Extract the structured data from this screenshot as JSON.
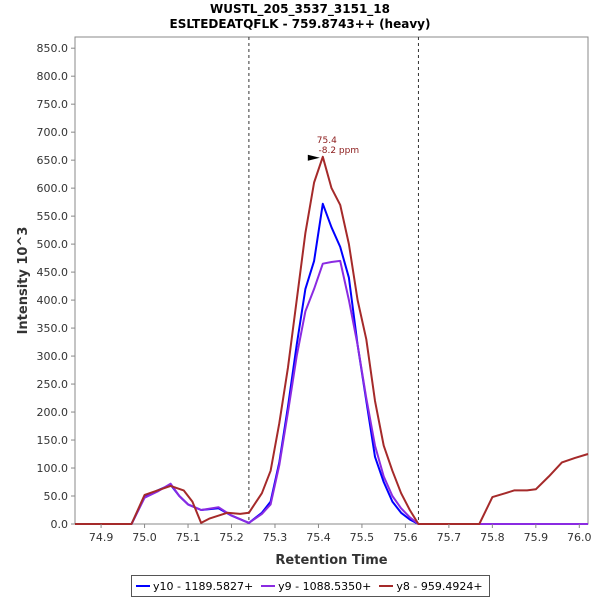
{
  "chart_data": {
    "type": "line",
    "title": "WUSTL_205_3537_3151_18",
    "subtitle": "ESLTEDEATQFLK - 759.8743++ (heavy)",
    "xlabel": "Retention Time",
    "ylabel": "Intensity 10^3",
    "xlim": [
      74.84,
      76.02
    ],
    "ylim": [
      0,
      870
    ],
    "x_ticks": [
      74.9,
      75.0,
      75.1,
      75.2,
      75.3,
      75.4,
      75.5,
      75.6,
      75.7,
      75.8,
      75.9,
      76.0
    ],
    "x_tick_labels": [
      "74.9",
      "75.0",
      "75.1",
      "75.2",
      "75.3",
      "75.4",
      "75.5",
      "75.6",
      "75.7",
      "75.8",
      "75.9",
      "76.0"
    ],
    "y_ticks": [
      0,
      50,
      100,
      150,
      200,
      250,
      300,
      350,
      400,
      450,
      500,
      550,
      600,
      650,
      700,
      750,
      800,
      850
    ],
    "y_tick_labels": [
      "0.0",
      "50.0",
      "100.0",
      "150.0",
      "200.0",
      "250.0",
      "300.0",
      "350.0",
      "400.0",
      "450.0",
      "500.0",
      "550.0",
      "600.0",
      "650.0",
      "700.0",
      "750.0",
      "800.0",
      "850.0"
    ],
    "integration_bounds": [
      75.24,
      75.63
    ],
    "annotation": {
      "x": 75.41,
      "y": 656,
      "line1": "75.4",
      "line2": "-8.2 ppm"
    },
    "series": [
      {
        "name": "y10 - 1189.5827+",
        "color": "#0000ff",
        "x": [
          74.84,
          74.97,
          75.0,
          75.03,
          75.06,
          75.08,
          75.1,
          75.13,
          75.17,
          75.2,
          75.24,
          75.27,
          75.29,
          75.31,
          75.33,
          75.35,
          75.37,
          75.39,
          75.41,
          75.43,
          75.45,
          75.47,
          75.49,
          75.51,
          75.53,
          75.55,
          75.57,
          75.59,
          75.61,
          75.63,
          76.02
        ],
        "y": [
          0,
          0,
          48,
          60,
          70,
          50,
          35,
          25,
          28,
          15,
          2,
          20,
          40,
          110,
          210,
          320,
          420,
          470,
          572,
          530,
          495,
          440,
          320,
          220,
          120,
          75,
          40,
          20,
          8,
          0,
          0
        ]
      },
      {
        "name": "y9 - 1088.5350+",
        "color": "#8a2be2",
        "x": [
          74.84,
          74.97,
          75.0,
          75.03,
          75.06,
          75.08,
          75.1,
          75.13,
          75.17,
          75.2,
          75.24,
          75.27,
          75.29,
          75.31,
          75.33,
          75.35,
          75.37,
          75.39,
          75.41,
          75.43,
          75.45,
          75.47,
          75.49,
          75.51,
          75.53,
          75.55,
          75.57,
          75.59,
          75.61,
          75.63,
          76.02
        ],
        "y": [
          0,
          0,
          47,
          58,
          72,
          50,
          35,
          25,
          30,
          15,
          2,
          18,
          35,
          105,
          200,
          300,
          380,
          420,
          465,
          468,
          470,
          400,
          320,
          225,
          140,
          85,
          50,
          28,
          12,
          0,
          0
        ]
      },
      {
        "name": "y8 - 959.4924+",
        "color": "#a52a2a",
        "x": [
          74.84,
          74.97,
          75.0,
          75.03,
          75.06,
          75.09,
          75.11,
          75.13,
          75.15,
          75.19,
          75.22,
          75.24,
          75.27,
          75.29,
          75.31,
          75.33,
          75.35,
          75.37,
          75.39,
          75.41,
          75.43,
          75.45,
          75.47,
          75.49,
          75.51,
          75.53,
          75.55,
          75.57,
          75.59,
          75.61,
          75.63,
          75.77,
          75.8,
          75.83,
          75.85,
          75.88,
          75.9,
          75.93,
          75.96,
          75.99,
          76.02
        ],
        "y": [
          0,
          0,
          52,
          60,
          68,
          60,
          40,
          2,
          10,
          20,
          18,
          20,
          55,
          95,
          180,
          280,
          400,
          520,
          610,
          656,
          600,
          570,
          500,
          400,
          330,
          220,
          140,
          95,
          55,
          25,
          0,
          0,
          48,
          55,
          60,
          60,
          62,
          85,
          110,
          118,
          125
        ]
      }
    ],
    "legend": [
      {
        "label": "y10 - 1189.5827+",
        "color": "#0000ff"
      },
      {
        "label": "y9 - 1088.5350+",
        "color": "#8a2be2"
      },
      {
        "label": "y8 - 959.4924+",
        "color": "#a52a2a"
      }
    ]
  }
}
